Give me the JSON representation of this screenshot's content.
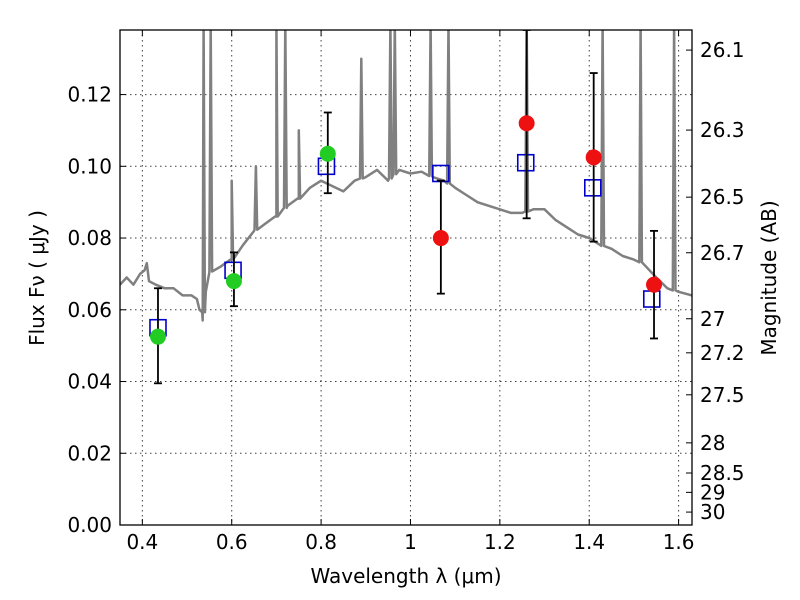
{
  "chart_data": {
    "type": "scatter",
    "xlabel": "Wavelength  λ (μm)",
    "ylabel": "Flux  Fν  ( μJy )",
    "y2label": "Magnitude (AB)",
    "xlim": [
      0.35,
      1.63
    ],
    "ylim": [
      0.0,
      0.138
    ],
    "x_ticks": [
      0.4,
      0.6,
      0.8,
      1.0,
      1.2,
      1.4,
      1.6
    ],
    "x_tick_labels": [
      "0.4",
      "0.6",
      "0.8",
      "1",
      "1.2",
      "1.4",
      "1.6"
    ],
    "y_ticks": [
      0.0,
      0.02,
      0.04,
      0.06,
      0.08,
      0.1,
      0.12
    ],
    "y_tick_labels": [
      "0.00",
      "0.02",
      "0.04",
      "0.06",
      "0.08",
      "0.10",
      "0.12"
    ],
    "y2_ticks": [
      {
        "flux": 0.1324,
        "label": "26.1"
      },
      {
        "flux": 0.1101,
        "label": "26.3"
      },
      {
        "flux": 0.0914,
        "label": "26.5"
      },
      {
        "flux": 0.0759,
        "label": "26.7"
      },
      {
        "flux": 0.0575,
        "label": "27"
      },
      {
        "flux": 0.048,
        "label": "27.2"
      },
      {
        "flux": 0.0363,
        "label": "27.5"
      },
      {
        "flux": 0.0229,
        "label": "28"
      },
      {
        "flux": 0.0145,
        "label": "28.5"
      },
      {
        "flux": 0.0091,
        "label": "29"
      },
      {
        "flux": 0.0036,
        "label": "30"
      }
    ],
    "grid": true,
    "colors": {
      "template": "#808080",
      "model": "#0000cc",
      "green": "#22cc22",
      "red": "#ee1111",
      "errorbar": "#000000"
    },
    "template_spectrum": [
      [
        0.35,
        0.067
      ],
      [
        0.365,
        0.069
      ],
      [
        0.38,
        0.067
      ],
      [
        0.395,
        0.07
      ],
      [
        0.405,
        0.071
      ],
      [
        0.41,
        0.073
      ],
      [
        0.415,
        0.068
      ],
      [
        0.43,
        0.067
      ],
      [
        0.45,
        0.066
      ],
      [
        0.47,
        0.066
      ],
      [
        0.49,
        0.064
      ],
      [
        0.51,
        0.064
      ],
      [
        0.522,
        0.063
      ],
      [
        0.528,
        0.06
      ],
      [
        0.535,
        0.057
      ],
      [
        0.542,
        0.065
      ],
      [
        0.55,
        0.0705
      ],
      [
        0.575,
        0.072
      ],
      [
        0.6,
        0.074
      ],
      [
        0.625,
        0.078
      ],
      [
        0.65,
        0.082
      ],
      [
        0.675,
        0.084
      ],
      [
        0.7,
        0.086
      ],
      [
        0.725,
        0.089
      ],
      [
        0.75,
        0.091
      ],
      [
        0.775,
        0.094
      ],
      [
        0.8,
        0.096
      ],
      [
        0.85,
        0.093
      ],
      [
        0.875,
        0.096
      ],
      [
        0.9,
        0.097
      ],
      [
        0.925,
        0.099
      ],
      [
        0.95,
        0.096
      ],
      [
        0.975,
        0.099
      ],
      [
        1.0,
        0.098
      ],
      [
        1.025,
        0.0985
      ],
      [
        1.05,
        0.097
      ],
      [
        1.075,
        0.096
      ],
      [
        1.1,
        0.094
      ],
      [
        1.125,
        0.092
      ],
      [
        1.15,
        0.09
      ],
      [
        1.175,
        0.089
      ],
      [
        1.2,
        0.088
      ],
      [
        1.225,
        0.087
      ],
      [
        1.25,
        0.087
      ],
      [
        1.275,
        0.088
      ],
      [
        1.3,
        0.088
      ],
      [
        1.325,
        0.085
      ],
      [
        1.35,
        0.083
      ],
      [
        1.375,
        0.081
      ],
      [
        1.4,
        0.08
      ],
      [
        1.425,
        0.078
      ],
      [
        1.45,
        0.077
      ],
      [
        1.475,
        0.075
      ],
      [
        1.5,
        0.074
      ],
      [
        1.52,
        0.073
      ],
      [
        1.55,
        0.069
      ],
      [
        1.575,
        0.066
      ],
      [
        1.6,
        0.065
      ],
      [
        1.63,
        0.064
      ]
    ],
    "template_lines": [
      {
        "x": 0.537,
        "peak": 0.14
      },
      {
        "x": 0.553,
        "peak": 0.14
      },
      {
        "x": 0.6,
        "peak": 0.096
      },
      {
        "x": 0.654,
        "peak": 0.1
      },
      {
        "x": 0.7,
        "peak": 0.14
      },
      {
        "x": 0.72,
        "peak": 0.14
      },
      {
        "x": 0.75,
        "peak": 0.11
      },
      {
        "x": 0.89,
        "peak": 0.13
      },
      {
        "x": 0.955,
        "peak": 0.14
      },
      {
        "x": 0.965,
        "peak": 0.14
      },
      {
        "x": 1.045,
        "peak": 0.14
      },
      {
        "x": 1.085,
        "peak": 0.14
      },
      {
        "x": 1.26,
        "peak": 0.14
      },
      {
        "x": 1.43,
        "peak": 0.14
      },
      {
        "x": 1.515,
        "peak": 0.14
      },
      {
        "x": 1.59,
        "peak": 0.14
      }
    ],
    "model_points": [
      {
        "x": 0.435,
        "y": 0.055
      },
      {
        "x": 0.603,
        "y": 0.071
      },
      {
        "x": 0.812,
        "y": 0.1
      },
      {
        "x": 1.068,
        "y": 0.098
      },
      {
        "x": 1.258,
        "y": 0.101
      },
      {
        "x": 1.408,
        "y": 0.094
      },
      {
        "x": 1.54,
        "y": 0.063
      }
    ],
    "observed_green": [
      {
        "x": 0.435,
        "y": 0.0525,
        "err_lo": 0.0395,
        "err_hi": 0.066
      },
      {
        "x": 0.605,
        "y": 0.068,
        "err_lo": 0.061,
        "err_hi": 0.076
      },
      {
        "x": 0.815,
        "y": 0.1035,
        "err_lo": 0.0925,
        "err_hi": 0.115
      }
    ],
    "observed_red": [
      {
        "x": 1.068,
        "y": 0.08,
        "err_lo": 0.0645,
        "err_hi": 0.096
      },
      {
        "x": 1.26,
        "y": 0.112,
        "err_lo": 0.0855,
        "err_hi": 0.138
      },
      {
        "x": 1.41,
        "y": 0.1025,
        "err_lo": 0.079,
        "err_hi": 0.126
      },
      {
        "x": 1.545,
        "y": 0.067,
        "err_lo": 0.052,
        "err_hi": 0.082
      }
    ]
  }
}
